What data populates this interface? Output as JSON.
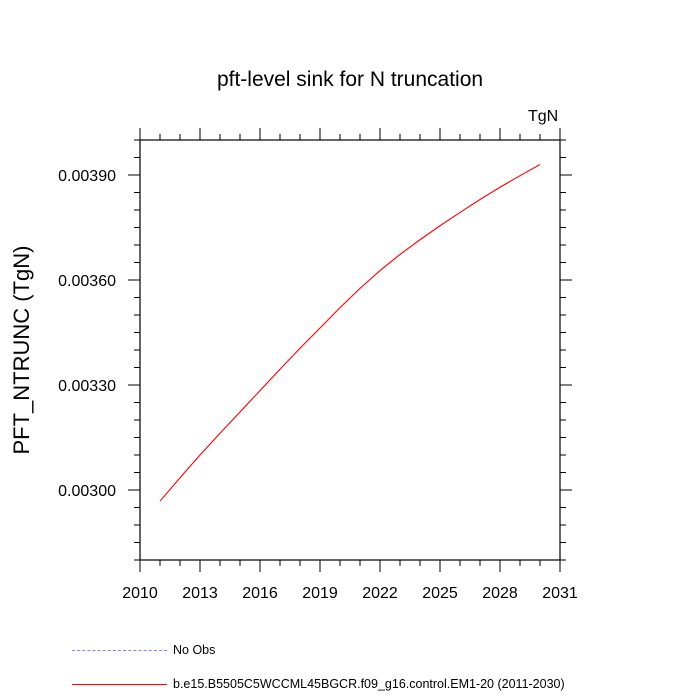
{
  "chart_data": {
    "type": "line",
    "title": "pft-level sink for N truncation",
    "units_label": "TgN",
    "ylabel": "PFT_NTRUNC  (TgN)",
    "xlabel": "",
    "xlim": [
      2010,
      2031
    ],
    "ylim": [
      0.0028,
      0.004
    ],
    "x_ticks": [
      2010,
      2013,
      2016,
      2019,
      2022,
      2025,
      2028,
      2031
    ],
    "y_ticks": [
      0.003,
      0.0033,
      0.0036,
      0.0039
    ],
    "y_tick_labels": [
      "0.00300",
      "0.00330",
      "0.00360",
      "0.00390"
    ],
    "grid": false,
    "legend_position": "bottom-left",
    "series": [
      {
        "name": "b.e15.B5505C5WCCML45BGCR.f09_g16.control.EM1-20 (2011-2030)",
        "color": "#ff0000",
        "style": "solid",
        "x": [
          2011,
          2012,
          2013,
          2014,
          2015,
          2016,
          2017,
          2018,
          2019,
          2020,
          2021,
          2022,
          2023,
          2024,
          2025,
          2026,
          2027,
          2028,
          2029,
          2030
        ],
        "y": [
          0.002968,
          0.003035,
          0.0031,
          0.003162,
          0.003223,
          0.003284,
          0.003345,
          0.003405,
          0.003463,
          0.003521,
          0.003576,
          0.003627,
          0.003673,
          0.003715,
          0.003755,
          0.003793,
          0.00383,
          0.003865,
          0.003898,
          0.00393
        ]
      },
      {
        "name": "No Obs",
        "color": "#7f7fff",
        "style": "dashed",
        "x": [],
        "y": []
      }
    ]
  }
}
